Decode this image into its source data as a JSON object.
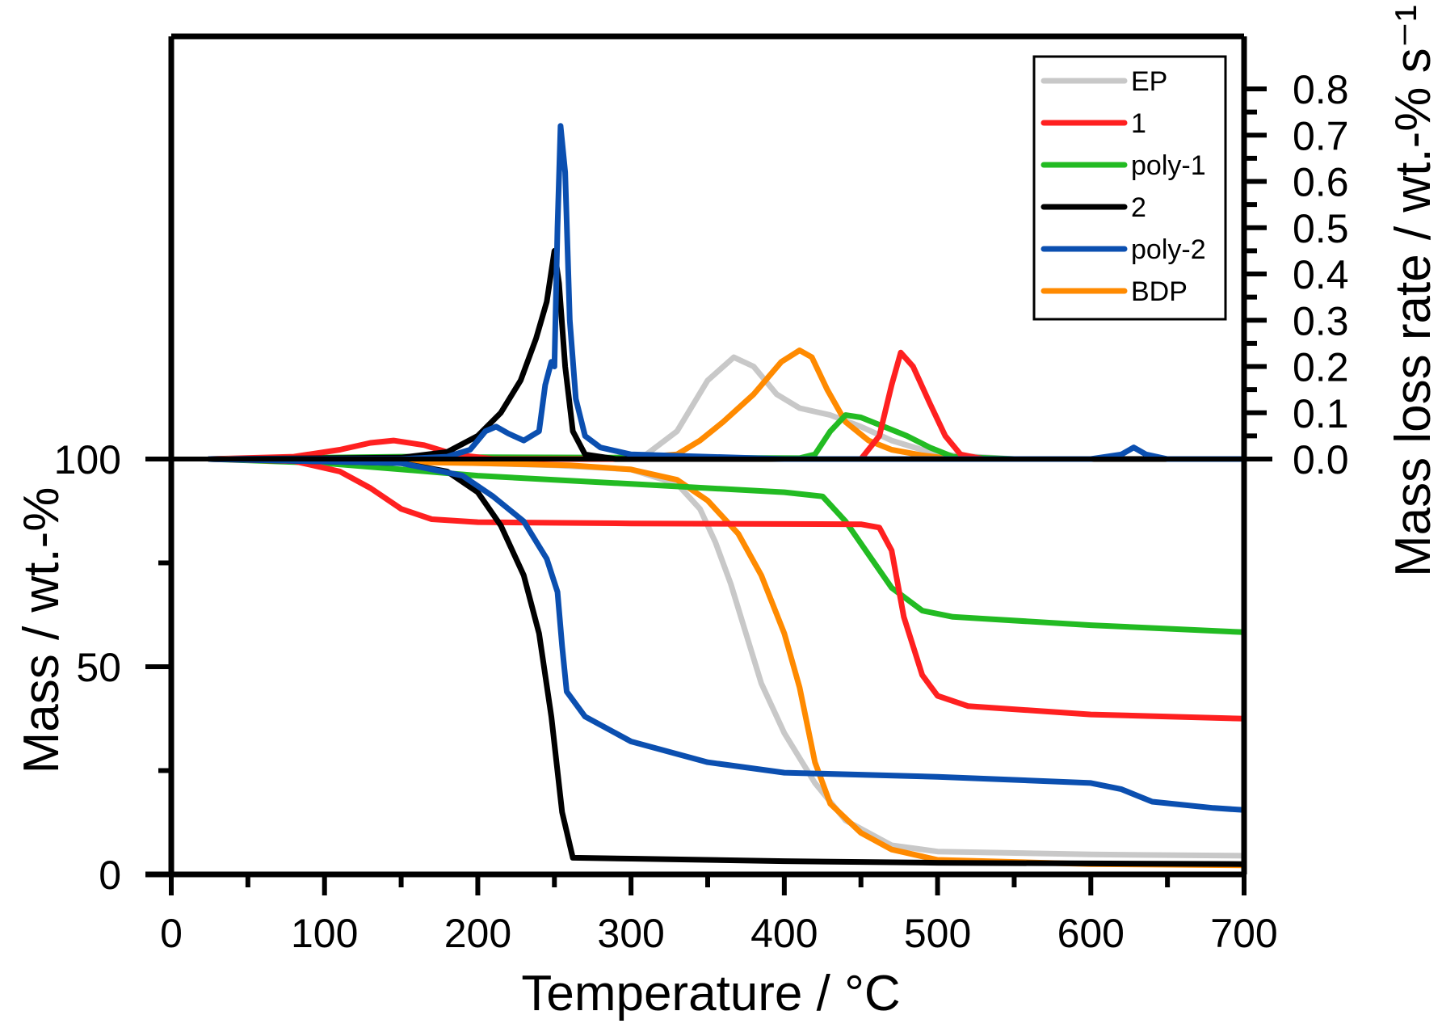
{
  "chart_data": {
    "type": "line",
    "xlabel": "Temperature /  °C",
    "ylabel_left": "Mass /  wt.-%",
    "ylabel_right": "Mass loss rate /  wt.-% s⁻¹",
    "xlim": [
      0,
      700
    ],
    "ylim_mass": [
      0,
      100
    ],
    "ylim_rate": [
      0,
      0.8
    ],
    "x_ticks": [
      "0",
      "100",
      "200",
      "300",
      "400",
      "500",
      "600",
      "700"
    ],
    "mass_ticks": [
      "0",
      "50",
      "100"
    ],
    "rate_ticks": [
      "0.0",
      "0.1",
      "0.2",
      "0.3",
      "0.4",
      "0.5",
      "0.6",
      "0.7",
      "0.8"
    ],
    "legend_position": "top-right",
    "colors": {
      "EP": "#c8c8c8",
      "1": "#ff2020",
      "poly-1": "#22bb22",
      "2": "#000000",
      "poly-2": "#0b4fb0",
      "BDP": "#ff8a00"
    },
    "mass_series": [
      {
        "name": "EP",
        "points": [
          [
            25,
            100
          ],
          [
            150,
            99.5
          ],
          [
            250,
            98.5
          ],
          [
            300,
            97.5
          ],
          [
            330,
            94
          ],
          [
            345,
            88
          ],
          [
            355,
            80
          ],
          [
            365,
            70
          ],
          [
            375,
            58
          ],
          [
            385,
            46
          ],
          [
            400,
            34
          ],
          [
            420,
            22
          ],
          [
            440,
            13
          ],
          [
            470,
            7
          ],
          [
            500,
            5.5
          ],
          [
            600,
            4.8
          ],
          [
            700,
            4.5
          ]
        ]
      },
      {
        "name": "1",
        "points": [
          [
            25,
            100
          ],
          [
            80,
            99.5
          ],
          [
            110,
            97
          ],
          [
            130,
            93
          ],
          [
            150,
            88
          ],
          [
            170,
            85.5
          ],
          [
            200,
            84.8
          ],
          [
            300,
            84.5
          ],
          [
            450,
            84.3
          ],
          [
            462,
            83.5
          ],
          [
            470,
            78
          ],
          [
            478,
            62
          ],
          [
            490,
            48
          ],
          [
            500,
            43
          ],
          [
            520,
            40.5
          ],
          [
            600,
            38.5
          ],
          [
            700,
            37.5
          ]
        ]
      },
      {
        "name": "poly-1",
        "points": [
          [
            25,
            100
          ],
          [
            100,
            99
          ],
          [
            200,
            96
          ],
          [
            300,
            94
          ],
          [
            400,
            92
          ],
          [
            425,
            91
          ],
          [
            440,
            85
          ],
          [
            455,
            77
          ],
          [
            470,
            69
          ],
          [
            490,
            63.5
          ],
          [
            510,
            62
          ],
          [
            600,
            60
          ],
          [
            700,
            58.3
          ]
        ]
      },
      {
        "name": "2",
        "points": [
          [
            25,
            100
          ],
          [
            150,
            99
          ],
          [
            180,
            97
          ],
          [
            200,
            92
          ],
          [
            215,
            84
          ],
          [
            230,
            72
          ],
          [
            240,
            58
          ],
          [
            248,
            38
          ],
          [
            255,
            15
          ],
          [
            262,
            4
          ],
          [
            300,
            3.8
          ],
          [
            400,
            3.2
          ],
          [
            500,
            2.8
          ],
          [
            700,
            2.5
          ]
        ]
      },
      {
        "name": "poly-2",
        "points": [
          [
            25,
            100
          ],
          [
            150,
            99
          ],
          [
            190,
            96
          ],
          [
            210,
            91
          ],
          [
            230,
            85
          ],
          [
            245,
            76
          ],
          [
            252,
            68
          ],
          [
            255,
            55
          ],
          [
            258,
            44
          ],
          [
            270,
            38
          ],
          [
            300,
            32
          ],
          [
            350,
            27
          ],
          [
            400,
            24.5
          ],
          [
            500,
            23.5
          ],
          [
            600,
            22
          ],
          [
            620,
            20.5
          ],
          [
            640,
            17.5
          ],
          [
            680,
            16
          ],
          [
            700,
            15.5
          ]
        ]
      },
      {
        "name": "BDP",
        "points": [
          [
            25,
            100
          ],
          [
            200,
            99
          ],
          [
            260,
            98.5
          ],
          [
            300,
            97.5
          ],
          [
            330,
            95
          ],
          [
            350,
            90
          ],
          [
            370,
            82
          ],
          [
            385,
            72
          ],
          [
            400,
            58
          ],
          [
            410,
            45
          ],
          [
            420,
            27
          ],
          [
            430,
            17
          ],
          [
            450,
            10
          ],
          [
            470,
            6
          ],
          [
            500,
            3.5
          ],
          [
            600,
            2.5
          ],
          [
            700,
            2.2
          ]
        ]
      }
    ],
    "rate_series": [
      {
        "name": "EP",
        "points": [
          [
            25,
            0
          ],
          [
            280,
            0
          ],
          [
            310,
            0.01
          ],
          [
            330,
            0.06
          ],
          [
            350,
            0.17
          ],
          [
            367,
            0.22
          ],
          [
            380,
            0.2
          ],
          [
            395,
            0.14
          ],
          [
            410,
            0.11
          ],
          [
            430,
            0.095
          ],
          [
            450,
            0.07
          ],
          [
            470,
            0.04
          ],
          [
            500,
            0.01
          ],
          [
            550,
            0
          ],
          [
            700,
            0
          ]
        ]
      },
      {
        "name": "1",
        "points": [
          [
            25,
            0
          ],
          [
            80,
            0.005
          ],
          [
            110,
            0.02
          ],
          [
            130,
            0.035
          ],
          [
            145,
            0.04
          ],
          [
            165,
            0.03
          ],
          [
            185,
            0.01
          ],
          [
            210,
            0
          ],
          [
            450,
            0
          ],
          [
            462,
            0.05
          ],
          [
            470,
            0.16
          ],
          [
            476,
            0.23
          ],
          [
            484,
            0.2
          ],
          [
            495,
            0.12
          ],
          [
            505,
            0.05
          ],
          [
            515,
            0.01
          ],
          [
            530,
            0
          ],
          [
            700,
            0
          ]
        ]
      },
      {
        "name": "poly-1",
        "points": [
          [
            25,
            0
          ],
          [
            150,
            0.005
          ],
          [
            200,
            0.004
          ],
          [
            300,
            0.003
          ],
          [
            410,
            0.002
          ],
          [
            420,
            0.01
          ],
          [
            430,
            0.06
          ],
          [
            440,
            0.095
          ],
          [
            450,
            0.09
          ],
          [
            465,
            0.07
          ],
          [
            480,
            0.05
          ],
          [
            495,
            0.025
          ],
          [
            510,
            0.005
          ],
          [
            550,
            0
          ],
          [
            700,
            0
          ]
        ]
      },
      {
        "name": "2",
        "points": [
          [
            25,
            0
          ],
          [
            150,
            0.003
          ],
          [
            180,
            0.015
          ],
          [
            200,
            0.05
          ],
          [
            215,
            0.1
          ],
          [
            228,
            0.17
          ],
          [
            238,
            0.26
          ],
          [
            245,
            0.34
          ],
          [
            250,
            0.45
          ],
          [
            253,
            0.38
          ],
          [
            257,
            0.2
          ],
          [
            262,
            0.06
          ],
          [
            270,
            0.01
          ],
          [
            290,
            0
          ],
          [
            700,
            0
          ]
        ]
      },
      {
        "name": "poly-2",
        "points": [
          [
            25,
            0
          ],
          [
            150,
            0
          ],
          [
            180,
            0.005
          ],
          [
            195,
            0.02
          ],
          [
            205,
            0.06
          ],
          [
            212,
            0.07
          ],
          [
            220,
            0.055
          ],
          [
            230,
            0.04
          ],
          [
            240,
            0.06
          ],
          [
            244,
            0.16
          ],
          [
            248,
            0.21
          ],
          [
            250,
            0.2
          ],
          [
            252,
            0.5
          ],
          [
            254,
            0.72
          ],
          [
            257,
            0.62
          ],
          [
            260,
            0.3
          ],
          [
            264,
            0.13
          ],
          [
            270,
            0.05
          ],
          [
            280,
            0.025
          ],
          [
            300,
            0.01
          ],
          [
            400,
            0
          ],
          [
            600,
            0
          ],
          [
            620,
            0.01
          ],
          [
            628,
            0.025
          ],
          [
            636,
            0.01
          ],
          [
            650,
            0
          ],
          [
            700,
            0
          ]
        ]
      },
      {
        "name": "BDP",
        "points": [
          [
            25,
            0
          ],
          [
            300,
            0.002
          ],
          [
            330,
            0.01
          ],
          [
            345,
            0.04
          ],
          [
            360,
            0.08
          ],
          [
            380,
            0.14
          ],
          [
            398,
            0.21
          ],
          [
            410,
            0.235
          ],
          [
            418,
            0.22
          ],
          [
            428,
            0.15
          ],
          [
            440,
            0.08
          ],
          [
            455,
            0.04
          ],
          [
            470,
            0.02
          ],
          [
            490,
            0.008
          ],
          [
            510,
            0
          ],
          [
            700,
            0
          ]
        ]
      }
    ]
  }
}
